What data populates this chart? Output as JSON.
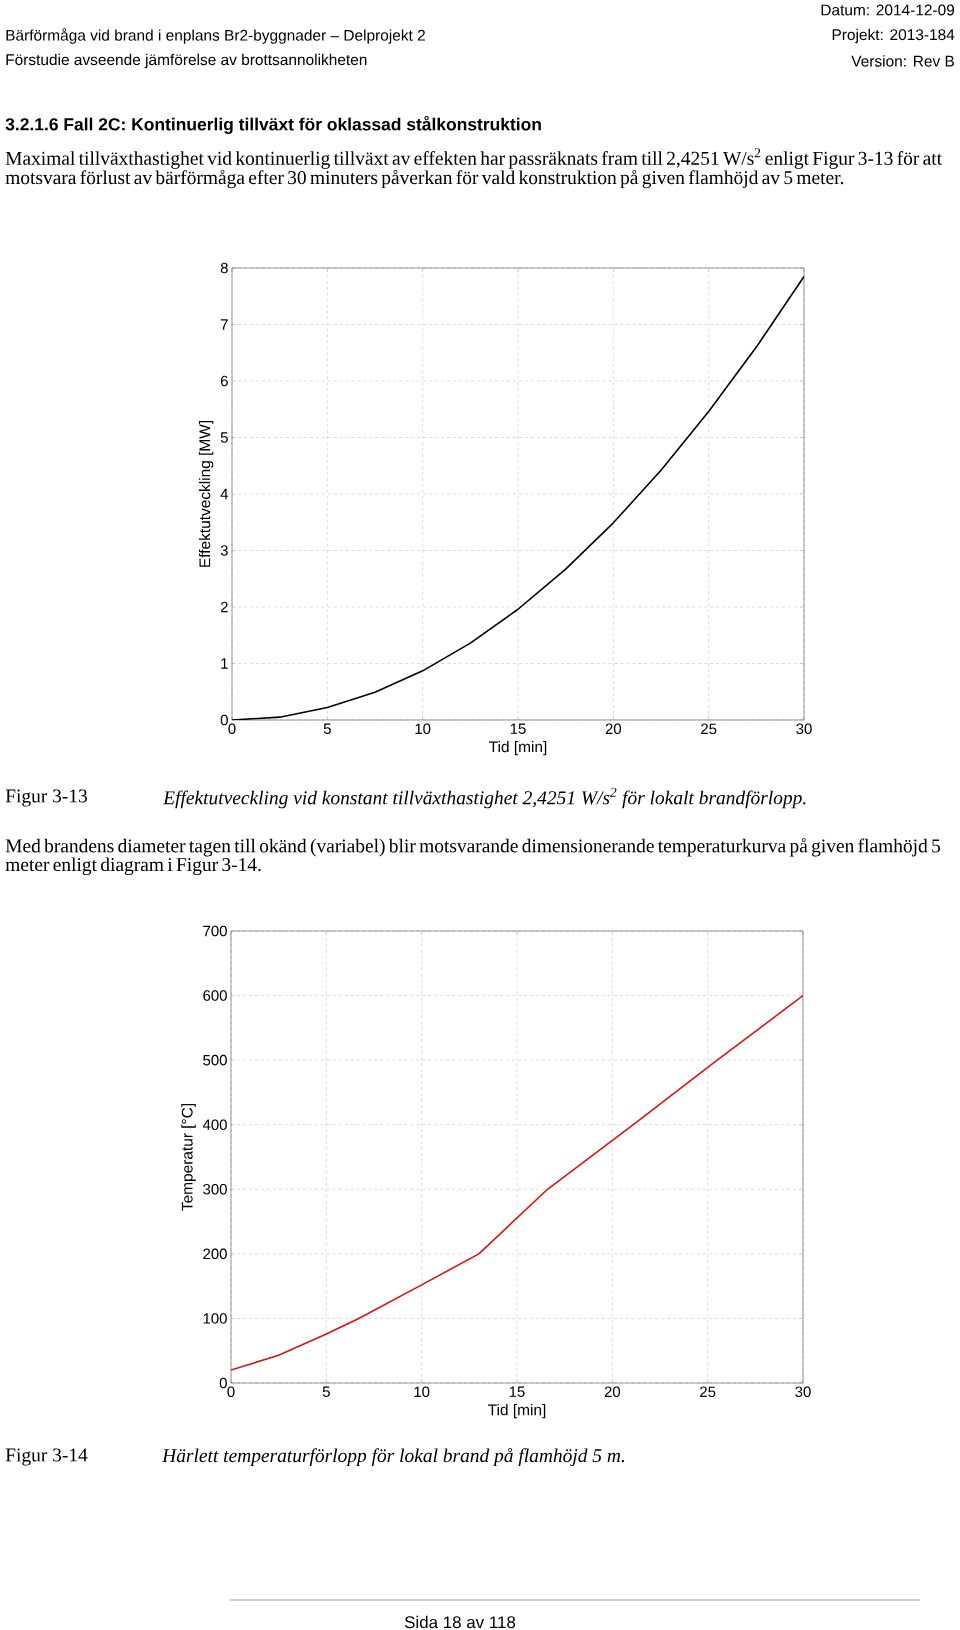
{
  "chart_data": [
    {
      "type": "line",
      "title": "3.2.1.6 Fall 2C: Kontinuerlig tillväxt för oklassad stålkonstruktion",
      "xlabel": "Tid [min]",
      "ylabel": "Effektutveckling [MW]",
      "annotations": [
        "Datum: 2014-12-09",
        "Bärförmåga vid brand i enplans Br2-byggnader – Delprojekt 2",
        "Projekt: 2013-184",
        "Förstudie avseende jämförelse av brottsannolikheten",
        "Version: Rev B",
        "Maximal tillväxthastighet vid kontinuerlig tillväxt av effekten har passräknats fram till 2,4251 W/s$^{2}$ enligt Figur 3-13 för att motsvara förlust av bärförmåga efter 30 minuters påverkan för vald konstruktion på given flamhöjd av 5 meter.",
        "Figur 3-13",
        "Effektutveckling vid konstant tillväxthastighet 2,4251 W/s$^{2}$ för lokalt brandförlopp."
      ],
      "x": [
        0,
        2.5,
        5,
        7.5,
        10,
        12.5,
        15,
        17.5,
        20,
        22.5,
        25,
        27.5,
        30
      ],
      "series": [
        {
          "color": "#000000",
          "values": [
            0,
            0.05,
            0.22,
            0.49,
            0.87,
            1.36,
            1.96,
            2.67,
            3.49,
            4.42,
            5.46,
            6.6,
            7.85
          ]
        }
      ],
      "xlim": [
        0,
        30
      ],
      "ylim": [
        0,
        8
      ],
      "xticks": [
        0,
        5,
        10,
        15,
        20,
        25,
        30
      ],
      "yticks": [
        0,
        1,
        2,
        3,
        4,
        5,
        6,
        7,
        8
      ],
      "grid": true,
      "marker": "none",
      "line_style": "solid"
    },
    {
      "type": "line",
      "xlabel": "Tid [min]",
      "ylabel": "Temperatur [°C]",
      "annotations": [
        "Med brandens diameter tagen till okänd (variabel) blir motsvarande dimensionerande temperaturkurva på given flamhöjd 5 meter enligt diagram i Figur 3-14.",
        "Figur 3-14",
        "Härlett temperaturförlopp för lokal brand på flamhöjd 5 m.",
        "Sida 18 av 118"
      ],
      "x": [
        0,
        2.5,
        5,
        6.7,
        10,
        13,
        16.6,
        21.1,
        25.5,
        30
      ],
      "series": [
        {
          "color": "#dd1111",
          "values": [
            20,
            43,
            76,
            100,
            152,
            200,
            300,
            400,
            500,
            600
          ]
        }
      ],
      "xlim": [
        0,
        30
      ],
      "ylim": [
        0,
        700
      ],
      "xticks": [
        0,
        5,
        10,
        15,
        20,
        25,
        30
      ],
      "yticks": [
        0,
        100,
        200,
        300,
        400,
        500,
        600,
        700
      ],
      "grid": true,
      "marker": "none",
      "line_style": "solid"
    }
  ]
}
